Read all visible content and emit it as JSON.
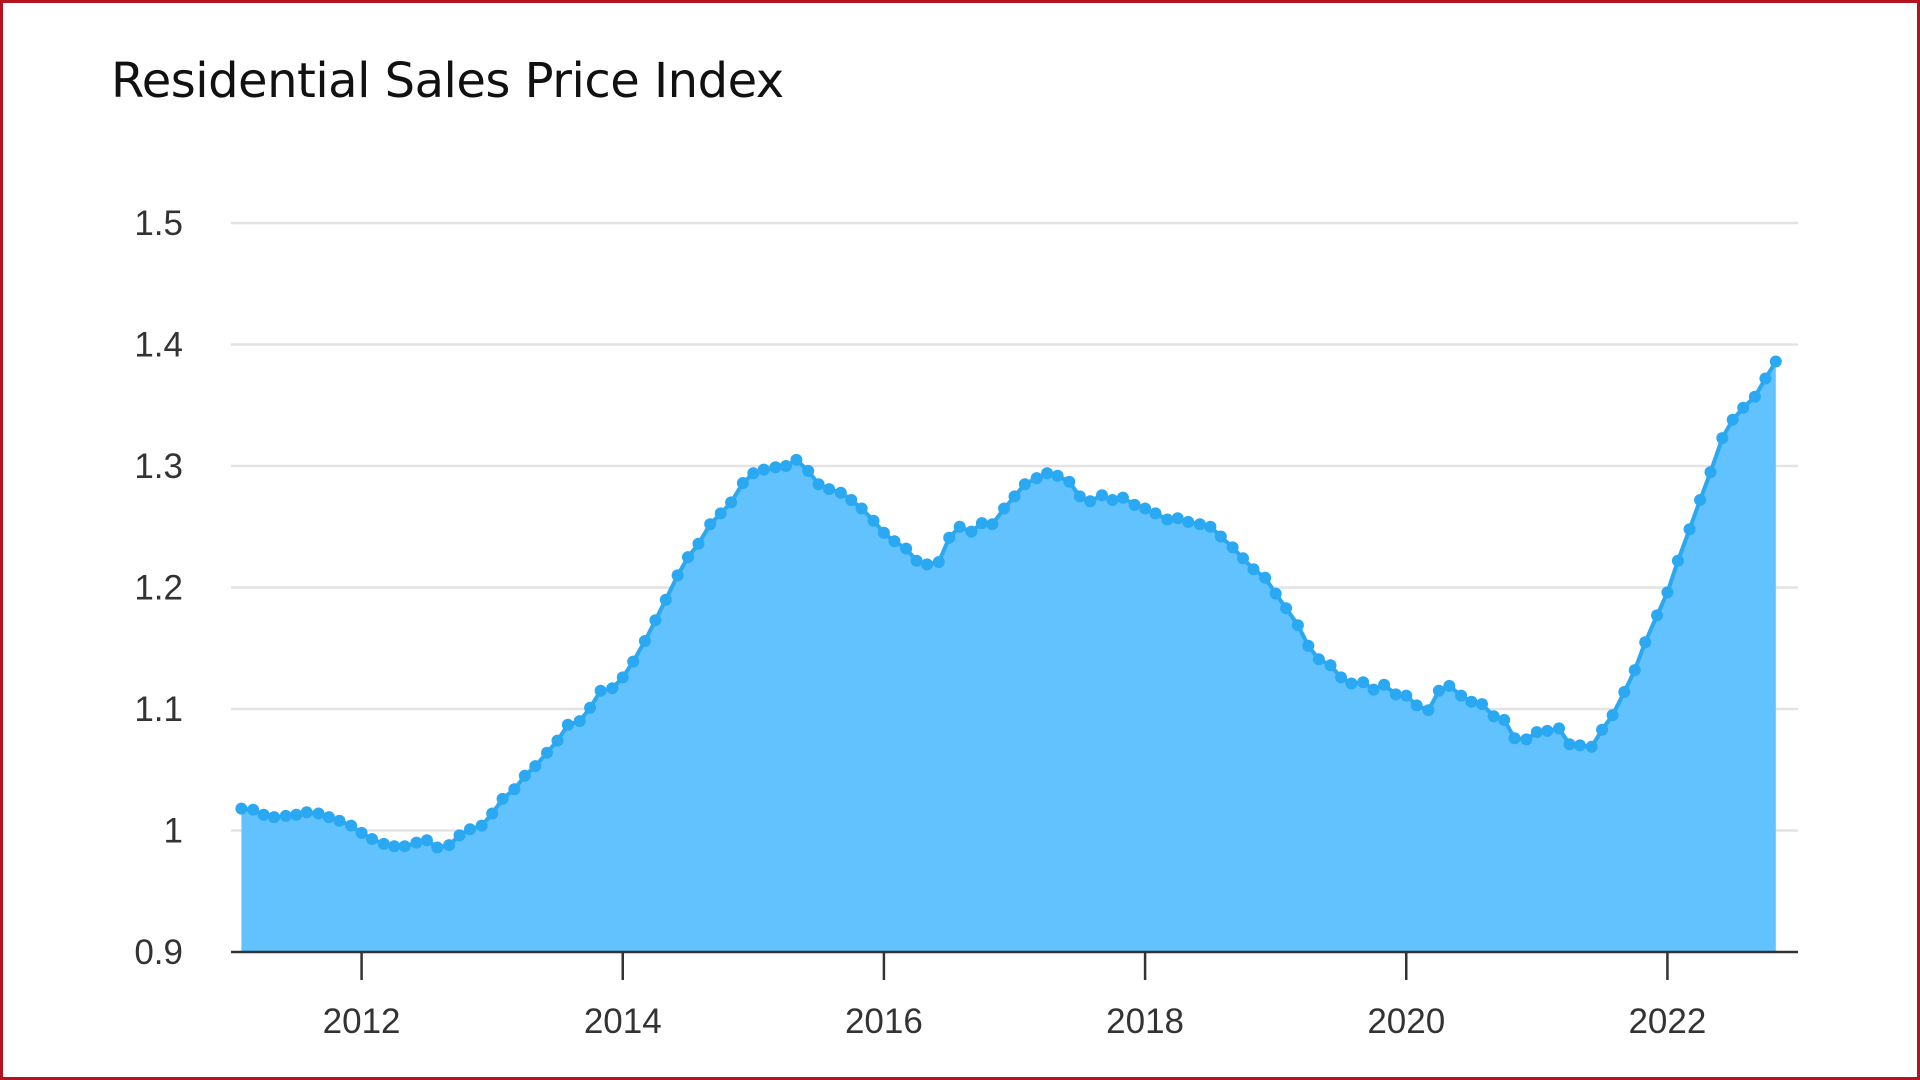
{
  "chart_data": {
    "type": "area",
    "title": "Residential Sales Price Index",
    "xlabel": "",
    "ylabel": "",
    "xlim": [
      2011.0,
      2023.0
    ],
    "ylim": [
      0.9,
      1.5
    ],
    "grid": true,
    "yticks": [
      {
        "value": 0.9,
        "label": "0.9"
      },
      {
        "value": 1.0,
        "label": "1"
      },
      {
        "value": 1.1,
        "label": "1.1"
      },
      {
        "value": 1.2,
        "label": "1.2"
      },
      {
        "value": 1.3,
        "label": "1.3"
      },
      {
        "value": 1.4,
        "label": "1.4"
      },
      {
        "value": 1.5,
        "label": "1.5"
      }
    ],
    "xticks": [
      {
        "value": 2012,
        "label": "2012"
      },
      {
        "value": 2014,
        "label": "2014"
      },
      {
        "value": 2016,
        "label": "2016"
      },
      {
        "value": 2018,
        "label": "2018"
      },
      {
        "value": 2020,
        "label": "2020"
      },
      {
        "value": 2022,
        "label": "2022"
      }
    ],
    "colors": {
      "line": "#2aa8f2",
      "fill": "#62c2fd",
      "grid": "#e3e3e3",
      "axis": "#333333"
    },
    "series": [
      {
        "values": [
          [
            2011.08,
            1.018
          ],
          [
            2011.17,
            1.017
          ],
          [
            2011.25,
            1.013
          ],
          [
            2011.33,
            1.011
          ],
          [
            2011.42,
            1.012
          ],
          [
            2011.5,
            1.013
          ],
          [
            2011.58,
            1.015
          ],
          [
            2011.67,
            1.014
          ],
          [
            2011.75,
            1.011
          ],
          [
            2011.83,
            1.008
          ],
          [
            2011.92,
            1.004
          ],
          [
            2012.0,
            0.998
          ],
          [
            2012.08,
            0.993
          ],
          [
            2012.17,
            0.989
          ],
          [
            2012.25,
            0.987
          ],
          [
            2012.33,
            0.987
          ],
          [
            2012.42,
            0.99
          ],
          [
            2012.5,
            0.992
          ],
          [
            2012.58,
            0.986
          ],
          [
            2012.67,
            0.988
          ],
          [
            2012.75,
            0.996
          ],
          [
            2012.83,
            1.001
          ],
          [
            2012.92,
            1.004
          ],
          [
            2013.0,
            1.014
          ],
          [
            2013.08,
            1.026
          ],
          [
            2013.17,
            1.034
          ],
          [
            2013.25,
            1.045
          ],
          [
            2013.33,
            1.053
          ],
          [
            2013.42,
            1.064
          ],
          [
            2013.5,
            1.074
          ],
          [
            2013.58,
            1.087
          ],
          [
            2013.67,
            1.09
          ],
          [
            2013.75,
            1.101
          ],
          [
            2013.83,
            1.115
          ],
          [
            2013.92,
            1.117
          ],
          [
            2014.0,
            1.126
          ],
          [
            2014.08,
            1.139
          ],
          [
            2014.17,
            1.156
          ],
          [
            2014.25,
            1.173
          ],
          [
            2014.33,
            1.19
          ],
          [
            2014.42,
            1.21
          ],
          [
            2014.5,
            1.225
          ],
          [
            2014.58,
            1.236
          ],
          [
            2014.67,
            1.252
          ],
          [
            2014.75,
            1.261
          ],
          [
            2014.83,
            1.27
          ],
          [
            2014.92,
            1.286
          ],
          [
            2015.0,
            1.294
          ],
          [
            2015.08,
            1.297
          ],
          [
            2015.17,
            1.299
          ],
          [
            2015.25,
            1.3
          ],
          [
            2015.33,
            1.305
          ],
          [
            2015.42,
            1.296
          ],
          [
            2015.5,
            1.285
          ],
          [
            2015.58,
            1.281
          ],
          [
            2015.67,
            1.278
          ],
          [
            2015.75,
            1.272
          ],
          [
            2015.83,
            1.265
          ],
          [
            2015.92,
            1.255
          ],
          [
            2016.0,
            1.245
          ],
          [
            2016.08,
            1.238
          ],
          [
            2016.17,
            1.232
          ],
          [
            2016.25,
            1.222
          ],
          [
            2016.33,
            1.219
          ],
          [
            2016.42,
            1.221
          ],
          [
            2016.5,
            1.241
          ],
          [
            2016.58,
            1.25
          ],
          [
            2016.67,
            1.246
          ],
          [
            2016.75,
            1.253
          ],
          [
            2016.83,
            1.252
          ],
          [
            2016.92,
            1.265
          ],
          [
            2017.0,
            1.275
          ],
          [
            2017.08,
            1.285
          ],
          [
            2017.17,
            1.29
          ],
          [
            2017.25,
            1.294
          ],
          [
            2017.33,
            1.292
          ],
          [
            2017.42,
            1.287
          ],
          [
            2017.5,
            1.275
          ],
          [
            2017.58,
            1.271
          ],
          [
            2017.67,
            1.276
          ],
          [
            2017.75,
            1.272
          ],
          [
            2017.83,
            1.274
          ],
          [
            2017.92,
            1.268
          ],
          [
            2018.0,
            1.265
          ],
          [
            2018.08,
            1.261
          ],
          [
            2018.17,
            1.256
          ],
          [
            2018.25,
            1.257
          ],
          [
            2018.33,
            1.254
          ],
          [
            2018.42,
            1.252
          ],
          [
            2018.5,
            1.25
          ],
          [
            2018.58,
            1.242
          ],
          [
            2018.67,
            1.233
          ],
          [
            2018.75,
            1.224
          ],
          [
            2018.83,
            1.215
          ],
          [
            2018.92,
            1.208
          ],
          [
            2019.0,
            1.195
          ],
          [
            2019.08,
            1.183
          ],
          [
            2019.17,
            1.169
          ],
          [
            2019.25,
            1.152
          ],
          [
            2019.33,
            1.141
          ],
          [
            2019.42,
            1.136
          ],
          [
            2019.5,
            1.126
          ],
          [
            2019.58,
            1.121
          ],
          [
            2019.67,
            1.122
          ],
          [
            2019.75,
            1.116
          ],
          [
            2019.83,
            1.12
          ],
          [
            2019.92,
            1.112
          ],
          [
            2020.0,
            1.111
          ],
          [
            2020.08,
            1.103
          ],
          [
            2020.17,
            1.099
          ],
          [
            2020.25,
            1.115
          ],
          [
            2020.33,
            1.119
          ],
          [
            2020.42,
            1.111
          ],
          [
            2020.5,
            1.106
          ],
          [
            2020.58,
            1.104
          ],
          [
            2020.67,
            1.094
          ],
          [
            2020.75,
            1.091
          ],
          [
            2020.83,
            1.076
          ],
          [
            2020.92,
            1.075
          ],
          [
            2021.0,
            1.081
          ],
          [
            2021.08,
            1.082
          ],
          [
            2021.17,
            1.084
          ],
          [
            2021.25,
            1.071
          ],
          [
            2021.33,
            1.07
          ],
          [
            2021.42,
            1.069
          ],
          [
            2021.5,
            1.083
          ],
          [
            2021.58,
            1.095
          ],
          [
            2021.67,
            1.114
          ],
          [
            2021.75,
            1.132
          ],
          [
            2021.83,
            1.155
          ],
          [
            2021.92,
            1.177
          ],
          [
            2022.0,
            1.196
          ],
          [
            2022.08,
            1.222
          ],
          [
            2022.17,
            1.248
          ],
          [
            2022.25,
            1.272
          ],
          [
            2022.33,
            1.295
          ],
          [
            2022.42,
            1.323
          ],
          [
            2022.5,
            1.338
          ],
          [
            2022.58,
            1.348
          ],
          [
            2022.67,
            1.357
          ],
          [
            2022.75,
            1.372
          ],
          [
            2022.83,
            1.386
          ]
        ]
      }
    ]
  }
}
